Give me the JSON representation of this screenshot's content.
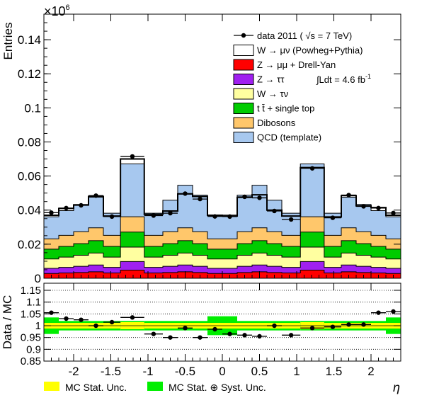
{
  "chart_data": [
    {
      "type": "bar",
      "panel": "main",
      "y_multiplier_label": "×10",
      "y_multiplier_exp": "6",
      "ylabel": "Entries",
      "ylim": [
        0,
        0.155
      ],
      "yticks": [
        0,
        0.02,
        0.04,
        0.06,
        0.08,
        0.1,
        0.12,
        0.14
      ],
      "ytick_labels": [
        "0",
        "0.02",
        "0.04",
        "0.06",
        "0.08",
        "0.1",
        "0.12",
        "0.14"
      ],
      "xlim": [
        -2.4,
        2.4
      ],
      "bin_edges": [
        -2.4,
        -2.2,
        -2.0,
        -1.8,
        -1.6,
        -1.37,
        -1.05,
        -0.8,
        -0.6,
        -0.4,
        -0.2,
        0.0,
        0.2,
        0.4,
        0.6,
        0.8,
        1.05,
        1.37,
        1.6,
        1.8,
        2.0,
        2.2,
        2.4
      ],
      "series": [
        {
          "name": "data 2011 ( √s = 7 TeV)",
          "kind": "points",
          "color": "#000000",
          "values": [
            0.0385,
            0.0412,
            0.0428,
            0.0485,
            0.0362,
            0.0715,
            0.0368,
            0.0382,
            0.0497,
            0.0465,
            0.0363,
            0.0362,
            0.0478,
            0.0472,
            0.0395,
            0.0345,
            0.0645,
            0.0355,
            0.0488,
            0.0422,
            0.0412,
            0.0383
          ]
        },
        {
          "name": "W → μν (Powheg+Pythia)",
          "kind": "total",
          "color": "#ffffff",
          "values": [
            0.037,
            0.041,
            0.043,
            0.048,
            0.0365,
            0.07,
            0.0375,
            0.0395,
            0.0495,
            0.048,
            0.037,
            0.0365,
            0.0475,
            0.049,
            0.04,
            0.0365,
            0.065,
            0.036,
            0.0485,
            0.0425,
            0.0415,
            0.037
          ]
        },
        {
          "name": "QCD (template)",
          "kind": "stack",
          "color": "#a7c8ef",
          "values": [
            0.013,
            0.0145,
            0.016,
            0.018,
            0.013,
            0.031,
            0.013,
            0.0185,
            0.025,
            0.0215,
            0.014,
            0.014,
            0.0215,
            0.025,
            0.0185,
            0.013,
            0.031,
            0.013,
            0.018,
            0.016,
            0.0145,
            0.013
          ]
        },
        {
          "name": "Dibosons",
          "kind": "stack",
          "color": "#ffc76b",
          "values": [
            0.006,
            0.0065,
            0.007,
            0.0075,
            0.0065,
            0.009,
            0.0065,
            0.007,
            0.0075,
            0.007,
            0.006,
            0.006,
            0.007,
            0.0075,
            0.007,
            0.0065,
            0.009,
            0.0065,
            0.0075,
            0.007,
            0.0065,
            0.006
          ]
        },
        {
          "name": "t t̄ + single top",
          "kind": "stack",
          "color": "#00cc00",
          "values": [
            0.0058,
            0.0063,
            0.0068,
            0.0073,
            0.0063,
            0.0088,
            0.0063,
            0.0068,
            0.0073,
            0.0068,
            0.0058,
            0.0058,
            0.0068,
            0.0073,
            0.0068,
            0.0063,
            0.0088,
            0.0063,
            0.0073,
            0.0068,
            0.0063,
            0.0058
          ]
        },
        {
          "name": "W → τν",
          "kind": "stack",
          "color": "#ffffa0",
          "values": [
            0.0055,
            0.006,
            0.0065,
            0.007,
            0.006,
            0.0085,
            0.006,
            0.0065,
            0.007,
            0.0065,
            0.0055,
            0.0055,
            0.0065,
            0.007,
            0.0065,
            0.006,
            0.0085,
            0.006,
            0.007,
            0.0065,
            0.006,
            0.0055
          ]
        },
        {
          "name": "Z → ττ",
          "kind": "stack",
          "color": "#a020f0",
          "values": [
            0.003,
            0.0033,
            0.0036,
            0.004,
            0.0033,
            0.005,
            0.0033,
            0.0036,
            0.004,
            0.0036,
            0.003,
            0.003,
            0.0036,
            0.004,
            0.0036,
            0.0033,
            0.005,
            0.0033,
            0.004,
            0.0036,
            0.0033,
            0.003
          ]
        },
        {
          "name": "Z → μμ + Drell-Yan",
          "kind": "stack",
          "color": "#ff0000",
          "values": [
            0.0028,
            0.0031,
            0.0034,
            0.0038,
            0.0031,
            0.0048,
            0.0031,
            0.0034,
            0.0038,
            0.0034,
            0.0028,
            0.0028,
            0.0034,
            0.0038,
            0.0034,
            0.0031,
            0.0048,
            0.0031,
            0.0038,
            0.0034,
            0.0031,
            0.0028
          ]
        }
      ],
      "annotation": "∫Ldt = 4.6 fb",
      "annotation_exp": "-1",
      "legend_position": "top-right"
    },
    {
      "type": "scatter",
      "panel": "ratio",
      "ylabel": "Data / MC",
      "xlabel": "η",
      "ylim": [
        0.85,
        1.18
      ],
      "yticks": [
        0.85,
        0.9,
        0.95,
        1,
        1.05,
        1.1,
        1.15
      ],
      "ytick_labels": [
        "0.85",
        "0.9",
        "0.95",
        "1",
        "1.05",
        "1.1",
        "1.15"
      ],
      "xticks": [
        -2,
        -1.5,
        -1,
        -0.5,
        0,
        0.5,
        1,
        1.5,
        2
      ],
      "xtick_labels": [
        "-2",
        "-1.5",
        "-1",
        "-0.5",
        "0",
        "0.5",
        "1",
        "1.5",
        "2"
      ],
      "ratio_values": [
        1.055,
        1.03,
        1.025,
        1.0,
        1.015,
        1.035,
        0.965,
        0.95,
        0.99,
        0.95,
        0.985,
        0.965,
        0.96,
        0.955,
        1.0,
        0.96,
        0.99,
        0.995,
        1.005,
        1.005,
        1.055,
        1.06
      ],
      "stat_unc": [
        0.012,
        0.012,
        0.012,
        0.012,
        0.012,
        0.015,
        0.012,
        0.012,
        0.012,
        0.012,
        0.012,
        0.012,
        0.012,
        0.012,
        0.012,
        0.012,
        0.015,
        0.012,
        0.012,
        0.012,
        0.012,
        0.012
      ],
      "syst_unc": [
        0.035,
        0.02,
        0.02,
        0.02,
        0.02,
        0.02,
        0.02,
        0.02,
        0.02,
        0.02,
        0.04,
        0.04,
        0.02,
        0.02,
        0.02,
        0.02,
        0.02,
        0.02,
        0.02,
        0.02,
        0.02,
        0.035
      ],
      "bottom_legend": [
        {
          "label": "MC Stat. Unc.",
          "color": "#ffff00"
        },
        {
          "label": "MC Stat. ⊕ Syst. Unc.",
          "color": "#00ee00"
        }
      ]
    }
  ]
}
